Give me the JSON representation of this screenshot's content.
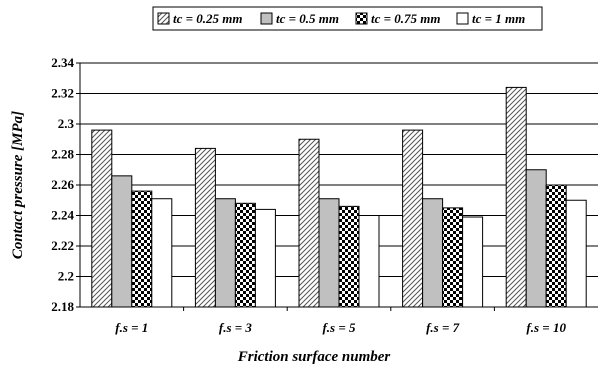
{
  "chart_data": {
    "type": "bar",
    "title": "",
    "xlabel": "Friction surface number",
    "ylabel": "Contact pressure [MPa]",
    "categories": [
      "f.s = 1",
      "f.s = 3",
      "f.s = 5",
      "f.s = 7",
      "f.s = 10"
    ],
    "series": [
      {
        "name": "tc = 0.25 mm",
        "values": [
          2.296,
          2.284,
          2.29,
          2.296,
          2.324
        ]
      },
      {
        "name": "tc = 0.5 mm",
        "values": [
          2.266,
          2.251,
          2.251,
          2.251,
          2.27
        ]
      },
      {
        "name": "tc = 0.75 mm",
        "values": [
          2.256,
          2.248,
          2.246,
          2.245,
          2.26
        ]
      },
      {
        "name": "tc = 1 mm",
        "values": [
          2.251,
          2.244,
          2.24,
          2.239,
          2.25
        ]
      }
    ],
    "ylim": [
      2.18,
      2.34
    ],
    "yticks": [
      "2.18",
      "2.2",
      "2.22",
      "2.24",
      "2.26",
      "2.28",
      "2.3",
      "2.32",
      "2.34"
    ],
    "grid": true,
    "legend_position": "top",
    "series_fills": [
      "diagonal-hatch",
      "#c0c0c0",
      "checker-pattern",
      "#ffffff"
    ]
  }
}
